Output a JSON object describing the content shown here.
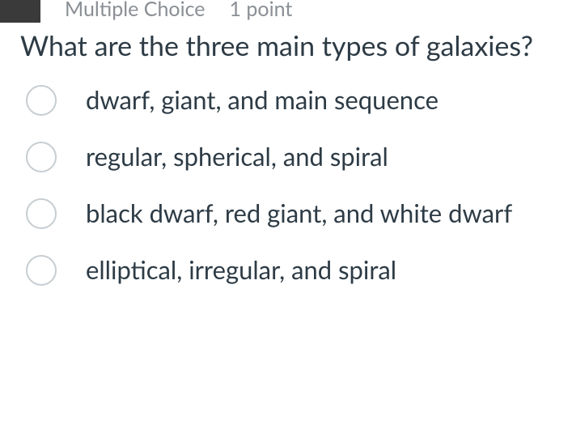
{
  "header": {
    "type_label": "Multiple Choice",
    "points_label": "1 point"
  },
  "question": {
    "text": "What are the three main types of galaxies?"
  },
  "options": [
    {
      "label": "dwarf, giant, and main sequence"
    },
    {
      "label": "regular, spherical, and spiral"
    },
    {
      "label": "black dwarf, red giant, and white dwarf"
    },
    {
      "label": "elliptical, irregular, and spiral"
    }
  ],
  "colors": {
    "text_primary": "#2d3b45",
    "text_muted": "#8a8f95",
    "radio_border": "#c7cdd1",
    "dark_block": "#3a3a3a",
    "background": "#ffffff"
  }
}
